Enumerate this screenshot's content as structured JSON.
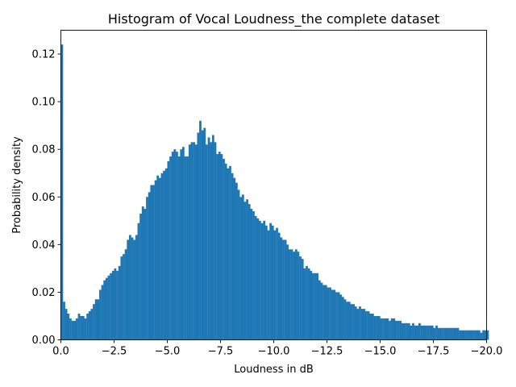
{
  "chart_data": {
    "type": "bar",
    "title": "Histogram of Vocal Loudness_the complete dataset",
    "xlabel": "Loudness in dB",
    "ylabel": "Probability density",
    "xlim": [
      0,
      -20
    ],
    "ylim": [
      0,
      0.13
    ],
    "xticks": [
      0.0,
      -2.5,
      -5.0,
      -7.5,
      -10.0,
      -12.5,
      -15.0,
      -17.5,
      -20.0
    ],
    "xtick_labels": [
      "0.0",
      "−2.5",
      "−5.0",
      "−7.5",
      "−10.0",
      "−12.5",
      "−15.0",
      "−17.5",
      "−20.0"
    ],
    "yticks": [
      0.0,
      0.02,
      0.04,
      0.06,
      0.08,
      0.1,
      0.12
    ],
    "ytick_labels": [
      "0.00",
      "0.02",
      "0.04",
      "0.06",
      "0.08",
      "0.10",
      "0.12"
    ],
    "bar_color": "#1f77b4",
    "bin_width": 0.1,
    "bin_start": 0.0,
    "values": [
      0.124,
      0.016,
      0.013,
      0.011,
      0.009,
      0.008,
      0.008,
      0.009,
      0.011,
      0.01,
      0.01,
      0.009,
      0.011,
      0.012,
      0.013,
      0.015,
      0.017,
      0.017,
      0.021,
      0.023,
      0.025,
      0.026,
      0.027,
      0.028,
      0.029,
      0.03,
      0.029,
      0.031,
      0.035,
      0.036,
      0.038,
      0.042,
      0.044,
      0.043,
      0.042,
      0.044,
      0.049,
      0.053,
      0.056,
      0.055,
      0.06,
      0.062,
      0.065,
      0.065,
      0.067,
      0.069,
      0.068,
      0.07,
      0.071,
      0.072,
      0.075,
      0.077,
      0.079,
      0.08,
      0.079,
      0.077,
      0.08,
      0.081,
      0.077,
      0.077,
      0.082,
      0.083,
      0.083,
      0.082,
      0.087,
      0.092,
      0.088,
      0.089,
      0.082,
      0.085,
      0.083,
      0.086,
      0.083,
      0.078,
      0.079,
      0.078,
      0.076,
      0.074,
      0.072,
      0.073,
      0.07,
      0.068,
      0.066,
      0.063,
      0.06,
      0.061,
      0.058,
      0.059,
      0.057,
      0.055,
      0.054,
      0.052,
      0.051,
      0.05,
      0.049,
      0.05,
      0.048,
      0.046,
      0.049,
      0.048,
      0.046,
      0.047,
      0.045,
      0.043,
      0.042,
      0.042,
      0.04,
      0.038,
      0.038,
      0.037,
      0.038,
      0.037,
      0.035,
      0.034,
      0.03,
      0.031,
      0.03,
      0.029,
      0.028,
      0.028,
      0.028,
      0.025,
      0.024,
      0.023,
      0.023,
      0.022,
      0.022,
      0.021,
      0.021,
      0.02,
      0.02,
      0.019,
      0.018,
      0.017,
      0.016,
      0.016,
      0.015,
      0.015,
      0.014,
      0.013,
      0.014,
      0.013,
      0.013,
      0.012,
      0.012,
      0.011,
      0.011,
      0.01,
      0.01,
      0.01,
      0.009,
      0.009,
      0.009,
      0.009,
      0.008,
      0.009,
      0.009,
      0.008,
      0.008,
      0.008,
      0.007,
      0.007,
      0.007,
      0.007,
      0.006,
      0.007,
      0.006,
      0.006,
      0.007,
      0.006,
      0.006,
      0.006,
      0.006,
      0.006,
      0.006,
      0.005,
      0.006,
      0.005,
      0.005,
      0.005,
      0.005,
      0.005,
      0.005,
      0.005,
      0.005,
      0.005,
      0.005,
      0.004,
      0.004,
      0.004,
      0.004,
      0.004,
      0.004,
      0.004,
      0.004,
      0.004,
      0.004,
      0.003,
      0.004,
      0.004,
      0.004
    ]
  }
}
